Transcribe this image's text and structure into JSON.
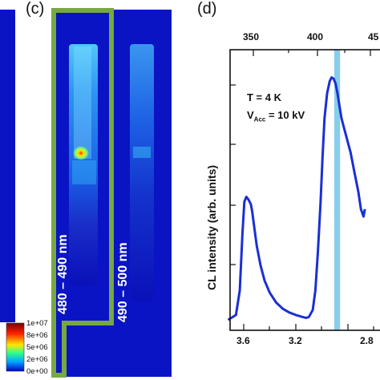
{
  "panels": {
    "c": {
      "letter": "(c)",
      "label_left": "480 – 490 nm",
      "label_right": "490 – 500 nm",
      "colorbar_ticks": [
        "1e+07",
        "8e+06",
        "5e+06",
        "2e+06",
        "0e+00"
      ],
      "colorbar_colors": [
        "#7a0000",
        "#ff2200",
        "#ffe600",
        "#33ff88",
        "#00a8ff",
        "#0000c8"
      ]
    },
    "d": {
      "letter": "(d)",
      "annotation_T": "T =  4 K",
      "annotation_V_main": "V",
      "annotation_V_sub": "Acc",
      "annotation_V_rest": " = 10 kV",
      "ylabel": "CL intensity (arb. units)",
      "highlight_color": "#87ceeb",
      "curve_color": "#1a2fd6"
    }
  },
  "chart_data": {
    "type": "line",
    "title": "",
    "xlabel": "",
    "ylabel": "CL intensity (arb. units)",
    "x_bottom_ticks": [
      "3.6",
      "3.2",
      "2.8"
    ],
    "x_top_ticks": [
      "350",
      "400",
      "45"
    ],
    "x_bottom_range_eV": [
      3.74,
      2.64
    ],
    "highlight_band_eV": [
      2.905,
      2.86
    ],
    "series": [
      {
        "x": [
          3.72,
          3.66,
          3.63,
          3.61,
          3.595,
          3.58,
          3.565,
          3.555,
          3.545,
          3.535,
          3.52,
          3.5,
          3.47,
          3.44,
          3.4,
          3.35,
          3.3,
          3.25,
          3.2,
          3.15,
          3.12,
          3.1,
          3.07,
          3.05,
          3.03,
          3.01,
          2.995,
          2.98,
          2.96,
          2.94,
          2.925,
          2.91,
          2.895,
          2.88,
          2.865,
          2.85,
          2.83,
          2.81,
          2.8,
          2.78,
          2.75,
          2.72,
          2.7,
          2.68,
          2.67
        ],
        "y": [
          0.0,
          0.02,
          0.12,
          0.35,
          0.48,
          0.5,
          0.49,
          0.48,
          0.47,
          0.44,
          0.38,
          0.3,
          0.22,
          0.16,
          0.11,
          0.07,
          0.045,
          0.03,
          0.02,
          0.012,
          0.008,
          0.012,
          0.04,
          0.12,
          0.28,
          0.48,
          0.66,
          0.82,
          0.92,
          0.97,
          0.985,
          0.98,
          0.96,
          0.92,
          0.87,
          0.82,
          0.78,
          0.74,
          0.72,
          0.68,
          0.6,
          0.52,
          0.45,
          0.42,
          0.45
        ]
      }
    ]
  }
}
